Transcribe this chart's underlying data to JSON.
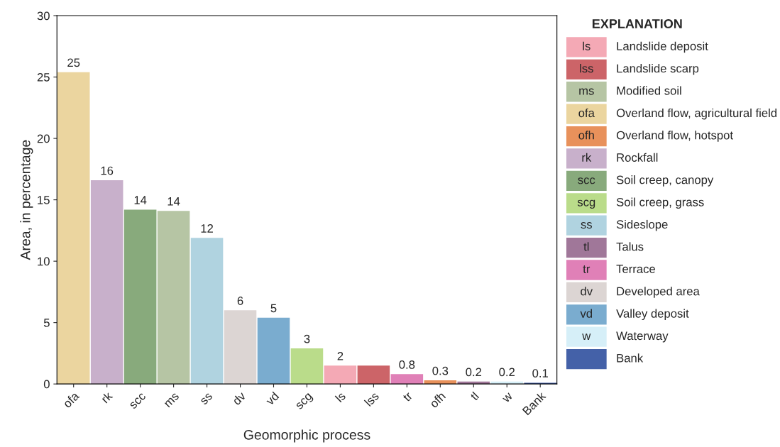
{
  "chart_data": {
    "type": "bar",
    "xlabel": "Geomorphic process",
    "ylabel": "Area, in percentage",
    "legend_title": "EXPLANATION",
    "categories": [
      "ofa",
      "rk",
      "scc",
      "ms",
      "ss",
      "dv",
      "vd",
      "scg",
      "ls",
      "lss",
      "tr",
      "ofh",
      "tl",
      "w",
      "Bank"
    ],
    "series": [
      {
        "name": "Landslide deposit",
        "color": "#f4a9b5",
        "values": [
          null,
          null,
          null,
          null,
          null,
          null,
          null,
          null,
          1.5,
          null,
          null,
          null,
          null,
          null,
          null
        ]
      },
      {
        "name": "Landslide scarp",
        "color": "#cc6468",
        "values": [
          null,
          null,
          null,
          null,
          null,
          null,
          null,
          null,
          null,
          1.5,
          null,
          null,
          null,
          null,
          null
        ]
      },
      {
        "name": "Modified soil",
        "color": "#b6c5a4",
        "values": [
          null,
          null,
          null,
          14.1,
          null,
          null,
          null,
          null,
          null,
          null,
          null,
          null,
          null,
          null,
          null
        ]
      },
      {
        "name": "Overland flow, agricultural field",
        "color": "#ebd59f",
        "values": [
          25.4,
          null,
          null,
          null,
          null,
          null,
          null,
          null,
          null,
          null,
          null,
          null,
          null,
          null,
          null
        ]
      },
      {
        "name": "Overland flow, hotspot",
        "color": "#e8915b",
        "values": [
          null,
          null,
          null,
          null,
          null,
          null,
          null,
          null,
          null,
          null,
          null,
          0.3,
          null,
          null,
          null
        ]
      },
      {
        "name": "Rockfall",
        "color": "#c8b0cb",
        "values": [
          null,
          16.6,
          null,
          null,
          null,
          null,
          null,
          null,
          null,
          null,
          null,
          null,
          null,
          null,
          null
        ]
      },
      {
        "name": "Soil creep, canopy",
        "color": "#88aa7c",
        "values": [
          null,
          null,
          14.2,
          null,
          null,
          null,
          null,
          null,
          null,
          null,
          null,
          null,
          null,
          null,
          null
        ]
      },
      {
        "name": "Soil creep, grass",
        "color": "#badc8a",
        "values": [
          null,
          null,
          null,
          null,
          null,
          null,
          null,
          2.9,
          null,
          null,
          null,
          null,
          null,
          null,
          null
        ]
      },
      {
        "name": "Sideslope",
        "color": "#b0d3e0",
        "values": [
          null,
          null,
          null,
          null,
          11.9,
          null,
          null,
          null,
          null,
          null,
          null,
          null,
          null,
          null,
          null
        ]
      },
      {
        "name": "Talus",
        "color": "#a07799",
        "values": [
          null,
          null,
          null,
          null,
          null,
          null,
          null,
          null,
          null,
          null,
          null,
          null,
          0.2,
          null,
          null
        ]
      },
      {
        "name": "Terrace",
        "color": "#e080b7",
        "values": [
          null,
          null,
          null,
          null,
          null,
          null,
          null,
          null,
          null,
          null,
          0.8,
          null,
          null,
          null,
          null
        ]
      },
      {
        "name": "Developed area",
        "color": "#dcd5d3",
        "values": [
          null,
          null,
          null,
          null,
          null,
          6.0,
          null,
          null,
          null,
          null,
          null,
          null,
          null,
          null,
          null
        ]
      },
      {
        "name": "Valley deposit",
        "color": "#7aaccf",
        "values": [
          null,
          null,
          null,
          null,
          null,
          null,
          5.4,
          null,
          null,
          null,
          null,
          null,
          null,
          null,
          null
        ]
      },
      {
        "name": "Waterway",
        "color": "#d6eff8",
        "values": [
          null,
          null,
          null,
          null,
          null,
          null,
          null,
          null,
          null,
          null,
          null,
          null,
          null,
          0.2,
          null
        ]
      },
      {
        "name": "Bank",
        "color": "#4461a8",
        "values": [
          null,
          null,
          null,
          null,
          null,
          null,
          null,
          null,
          null,
          null,
          null,
          null,
          null,
          null,
          0.1
        ]
      }
    ],
    "value_labels": [
      "25",
      "16",
      "14",
      "14",
      "12",
      "6",
      "5",
      "3",
      "2",
      null,
      "0.8",
      "0.3",
      "0.2",
      "0.2",
      "0.1"
    ],
    "ylim": [
      0,
      30
    ],
    "yticks": [
      0,
      5,
      10,
      15,
      20,
      25,
      30
    ],
    "grid": false,
    "legend": "right"
  }
}
